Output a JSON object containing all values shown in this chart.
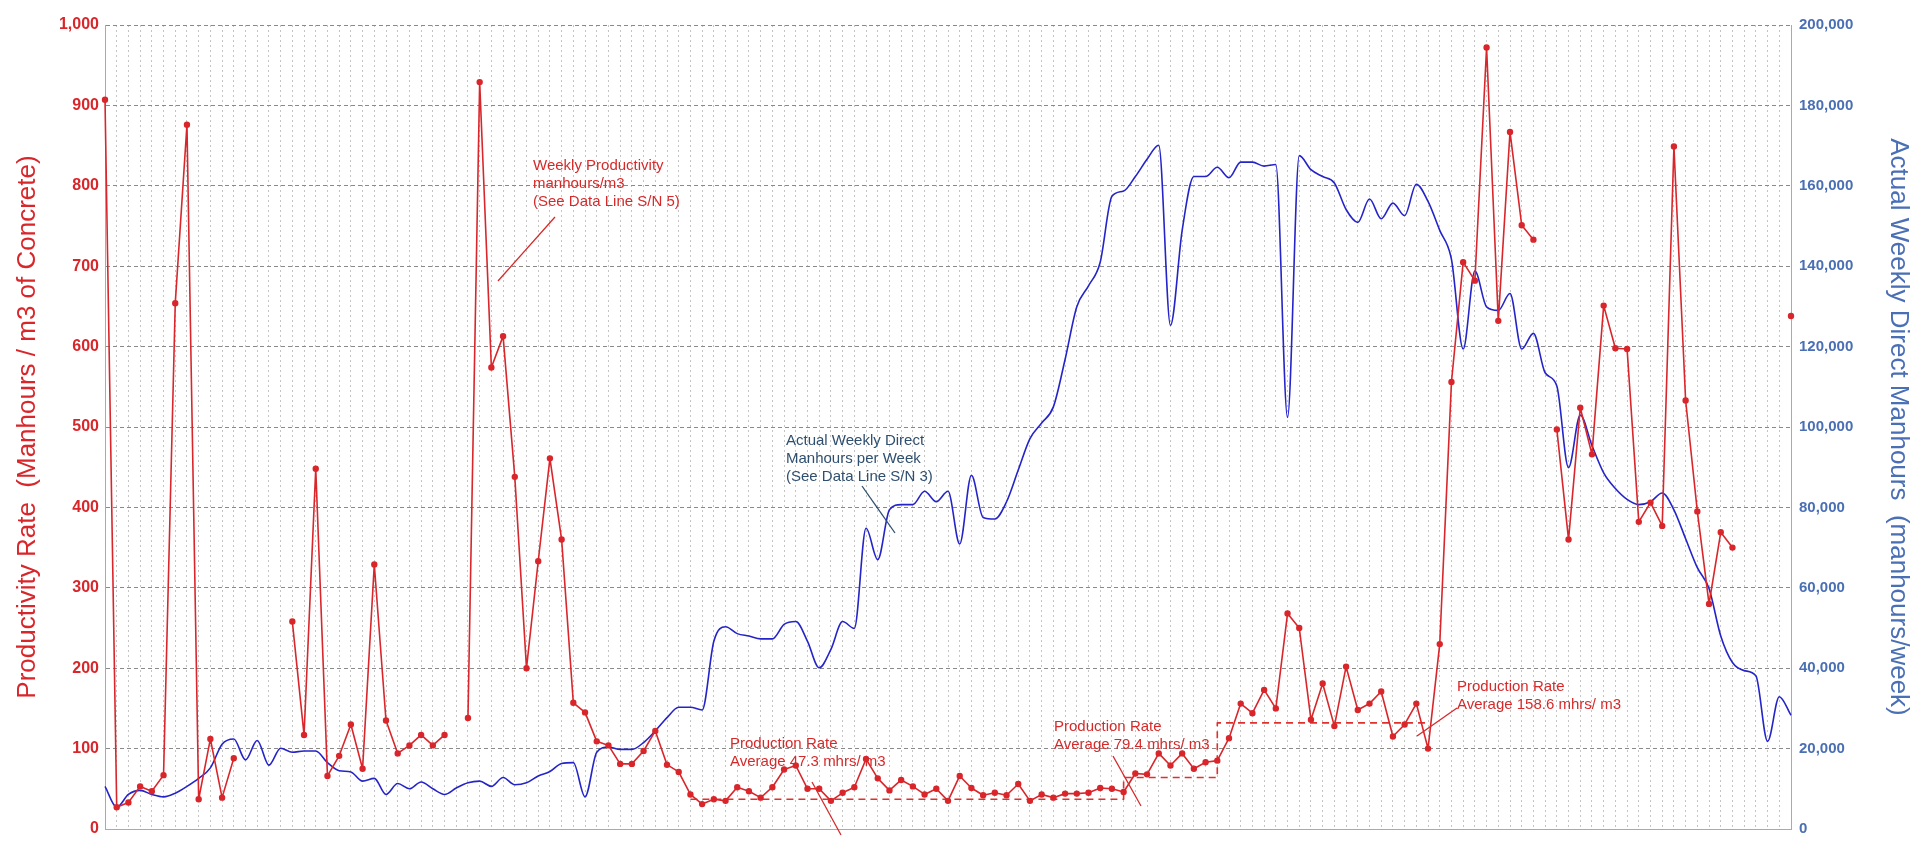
{
  "chart_data": {
    "type": "line",
    "ylabel": "Productivity Rate  (Manhours / m3 of Concrete)",
    "y2label": "Actual Weekly Direct Manhours  (manhours/week)",
    "categories": [
      null,
      null,
      null,
      null,
      null,
      null,
      null,
      null,
      null,
      null,
      null,
      null,
      null,
      null,
      null,
      null,
      null,
      null,
      null,
      null,
      null,
      null,
      null,
      null,
      null,
      null,
      null,
      null,
      null,
      null,
      null,
      null,
      null,
      null,
      null,
      null,
      null,
      null,
      null,
      null,
      null,
      null,
      null,
      null,
      null,
      null,
      null,
      null,
      null,
      null,
      null,
      null,
      null,
      null,
      null,
      null,
      null,
      null,
      null,
      null,
      null,
      null,
      null,
      null,
      null,
      null,
      null,
      null,
      null,
      null,
      null,
      null,
      null,
      null,
      null,
      null,
      null,
      null,
      null,
      null,
      null,
      null,
      null,
      null,
      null,
      null,
      null,
      null,
      null,
      null,
      null,
      null,
      null,
      null,
      null,
      null,
      null,
      null,
      null,
      null,
      null,
      null,
      null,
      null,
      null,
      null,
      null,
      null,
      null,
      null,
      null,
      null,
      null,
      null,
      null,
      null,
      null,
      null,
      null,
      null,
      null,
      null,
      null,
      null,
      null,
      null,
      null,
      null,
      null,
      null,
      null,
      null,
      null,
      null,
      null,
      null,
      null,
      null,
      null,
      null,
      null,
      null,
      null,
      null,
      null
    ],
    "series": [
      {
        "color": "#d9262b",
        "marker": "circle",
        "values": [
          907,
          27,
          33,
          53,
          47,
          67,
          654,
          876,
          37,
          112,
          39,
          88,
          null,
          null,
          null,
          null,
          258,
          117,
          448,
          66,
          91,
          130,
          75,
          329,
          135,
          94,
          104,
          117,
          104,
          117,
          null,
          138,
          929,
          574,
          613,
          438,
          200,
          333,
          461,
          360,
          157,
          145,
          109,
          104,
          81,
          81,
          97,
          122,
          80,
          71,
          43,
          31,
          37,
          35,
          52,
          47,
          39,
          52,
          74,
          79,
          50,
          50,
          35,
          45,
          52,
          87,
          63,
          48,
          61,
          53,
          43,
          50,
          35,
          66,
          51,
          42,
          45,
          42,
          56,
          35,
          43,
          39,
          44,
          44,
          45,
          51,
          50,
          46,
          69,
          68,
          94,
          79,
          94,
          75,
          83,
          85,
          113,
          156,
          144,
          173,
          150,
          268,
          250,
          136,
          181,
          128,
          202,
          148,
          156,
          171,
          115,
          130,
          156,
          100,
          230,
          556,
          705,
          682,
          972,
          632,
          867,
          751,
          733,
          null,
          497,
          360,
          524,
          466,
          651,
          598,
          597,
          382,
          406,
          377,
          849,
          533,
          395,
          280,
          369,
          350,
          null,
          null,
          null,
          null,
          638
        ]
      },
      {
        "color": "#2424c8",
        "marker": "none",
        "axis": "y2",
        "values": [
          10600,
          5400,
          8600,
          9600,
          8600,
          8000,
          8900,
          10600,
          12600,
          15200,
          21100,
          22400,
          17200,
          22000,
          15900,
          20100,
          19100,
          19400,
          19400,
          16500,
          14500,
          14200,
          11900,
          12600,
          8600,
          11300,
          10000,
          11700,
          10000,
          8600,
          10200,
          11500,
          11900,
          10600,
          12800,
          11000,
          11500,
          13200,
          14300,
          16300,
          16500,
          8000,
          19100,
          20400,
          19800,
          19800,
          21500,
          24400,
          27700,
          30300,
          30300,
          29600,
          46700,
          50300,
          48600,
          48000,
          47300,
          47300,
          50900,
          51600,
          46700,
          40100,
          44700,
          51600,
          49900,
          74800,
          67000,
          79400,
          80700,
          80700,
          84000,
          81400,
          84000,
          70900,
          88000,
          77500,
          77100,
          81400,
          89300,
          97100,
          101000,
          105000,
          116800,
          129900,
          135100,
          141000,
          157400,
          158700,
          162300,
          166600,
          170100,
          125300,
          148900,
          162300,
          162300,
          164600,
          162000,
          165900,
          165900,
          164900,
          165300,
          102400,
          167500,
          164000,
          162300,
          160700,
          154100,
          150900,
          156700,
          151800,
          155700,
          152600,
          160400,
          156100,
          148900,
          141700,
          119400,
          138800,
          129900,
          129000,
          133200,
          119400,
          123300,
          113500,
          110200,
          89900,
          103000,
          95400,
          88600,
          84700,
          82000,
          80700,
          81400,
          83600,
          79400,
          72200,
          65000,
          59800,
          48000,
          41400,
          39400,
          38100,
          21800,
          32900,
          28300
        ]
      },
      {
        "type": "step",
        "color": "#e0302c",
        "marker": "none",
        "line_style": "dashed",
        "values": [
          null,
          null,
          null,
          null,
          null,
          null,
          null,
          null,
          null,
          null,
          null,
          null,
          null,
          null,
          null,
          null,
          null,
          null,
          null,
          null,
          null,
          null,
          null,
          null,
          null,
          null,
          null,
          null,
          null,
          null,
          null,
          null,
          null,
          null,
          null,
          null,
          null,
          null,
          null,
          null,
          null,
          null,
          null,
          null,
          null,
          null,
          null,
          null,
          null,
          null,
          37,
          37,
          37,
          37,
          37,
          37,
          37,
          37,
          37,
          37,
          37,
          37,
          37,
          37,
          37,
          37,
          37,
          37,
          37,
          37,
          37,
          37,
          37,
          37,
          37,
          37,
          37,
          37,
          37,
          37,
          37,
          37,
          37,
          37,
          37,
          37,
          37,
          37,
          64,
          64,
          64,
          64,
          64,
          64,
          64,
          64,
          132,
          132,
          132,
          132,
          132,
          132,
          132,
          132,
          132,
          132,
          132,
          132,
          132,
          132,
          132,
          132,
          132,
          132,
          null,
          null,
          null,
          null,
          null,
          null,
          null,
          null,
          null,
          null,
          null,
          null,
          null,
          null,
          null,
          null,
          null,
          null,
          null,
          null,
          null,
          null,
          null,
          null,
          null,
          null,
          null,
          null,
          null,
          null,
          null
        ]
      }
    ],
    "ylim": [
      0,
      1000
    ],
    "yticks": [
      0,
      100,
      200,
      300,
      400,
      500,
      600,
      700,
      800,
      900,
      {
        "value": 1000,
        "label": "1,000"
      }
    ],
    "y2lim": [
      0,
      200000
    ],
    "y2ticks": [
      0,
      {
        "value": 20000,
        "label": "20,000"
      },
      {
        "value": 40000,
        "label": "40,000"
      },
      {
        "value": 60000,
        "label": "60,000"
      },
      {
        "value": 80000,
        "label": "80,000"
      },
      {
        "value": 100000,
        "label": "100,000"
      },
      {
        "value": 120000,
        "label": "120,000"
      },
      {
        "value": 140000,
        "label": "140,000"
      },
      {
        "value": 160000,
        "label": "160,000"
      },
      {
        "value": 180000,
        "label": "180,000"
      },
      {
        "value": 200000,
        "label": "200,000"
      }
    ],
    "grid": true,
    "annotations": [
      "Weekly Productivity\nmanhours/m3\n(See Data Line S/N 5)",
      "Actual Weekly Direct\nManhours per Week\n(See Data Line S/N 3)",
      "Production Rate\nAverage 47.3 mhrs/ m3",
      "Production Rate\nAverage 79.4 mhrs/ m3",
      "Production Rate\nAverage 158.6 mhrs/ m3"
    ]
  }
}
